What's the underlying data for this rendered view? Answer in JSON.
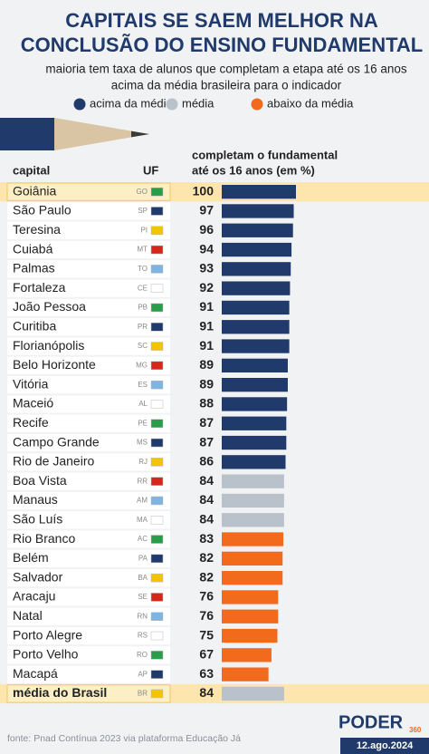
{
  "chart_data": {
    "type": "bar",
    "orientation": "horizontal",
    "title": [
      "CAPITAIS SE SAEM MELHOR NA",
      "CONCLUSÃO DO ENSINO FUNDAMENTAL"
    ],
    "subtitle": [
      "maioria tem taxa de alunos que completam a etapa até os 16 anos",
      "acima da média brasileira para o indicador"
    ],
    "category_header": "capital",
    "uf_header": "UF",
    "value_header": [
      "completam o fundamental",
      "até os 16 anos (em %)"
    ],
    "categories": [
      "Goiânia",
      "São Paulo",
      "Teresina",
      "Cuiabá",
      "Palmas",
      "Fortaleza",
      "João Pessoa",
      "Curitiba",
      "Florianópolis",
      "Belo Horizonte",
      "Vitória",
      "Maceió",
      "Recife",
      "Campo Grande",
      "Rio de Janeiro",
      "Boa Vista",
      "Manaus",
      "São Luís",
      "Rio Branco",
      "Belém",
      "Salvador",
      "Aracaju",
      "Natal",
      "Porto Alegre",
      "Porto Velho",
      "Macapá",
      "média do Brasil"
    ],
    "uf": [
      "GO",
      "SP",
      "PI",
      "MT",
      "TO",
      "CE",
      "PB",
      "PR",
      "SC",
      "MG",
      "ES",
      "AL",
      "PE",
      "MS",
      "RJ",
      "RR",
      "AM",
      "MA",
      "AC",
      "PA",
      "BA",
      "SE",
      "RN",
      "RS",
      "RO",
      "AP",
      "BR"
    ],
    "series": [
      {
        "name": "acima da média",
        "color": "#1f3a6b",
        "values": [
          100,
          97,
          96,
          94,
          93,
          92,
          91,
          91,
          91,
          89,
          89,
          88,
          87,
          87,
          86,
          null,
          null,
          null,
          null,
          null,
          null,
          null,
          null,
          null,
          null,
          null,
          null
        ]
      },
      {
        "name": "média",
        "color": "#b9c1ca",
        "values": [
          null,
          null,
          null,
          null,
          null,
          null,
          null,
          null,
          null,
          null,
          null,
          null,
          null,
          null,
          null,
          84,
          84,
          84,
          null,
          null,
          null,
          null,
          null,
          null,
          null,
          null,
          84
        ]
      },
      {
        "name": "abaixo da média",
        "color": "#f26b1d",
        "values": [
          null,
          null,
          null,
          null,
          null,
          null,
          null,
          null,
          null,
          null,
          null,
          null,
          null,
          null,
          null,
          null,
          null,
          null,
          83,
          82,
          82,
          76,
          76,
          75,
          67,
          63,
          null
        ]
      }
    ],
    "xlim": [
      0,
      100
    ],
    "highlight_rows": [
      0,
      26
    ],
    "source": "fonte: Pnad Contínua 2023 via plataforma Educação Já",
    "brand": "PODER",
    "brand_sup": "360",
    "date": "12.ago.2024"
  }
}
